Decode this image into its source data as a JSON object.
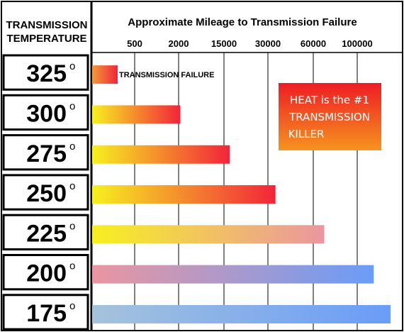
{
  "chart_data": {
    "type": "bar",
    "orientation": "horizontal",
    "title": "Approximate Mileage to Transmission Failure",
    "row_header": [
      "TRANSMISSION",
      "TEMPERATURE"
    ],
    "x_ticks": [
      "500",
      "2000",
      "15000",
      "30000",
      "60000",
      "100000"
    ],
    "x_scale": "ordinal-ticks",
    "grid": true,
    "categories": [
      "325",
      "300",
      "275",
      "250",
      "225",
      "200",
      "175"
    ],
    "degree_mark": "o",
    "values": [
      300,
      2500,
      17000,
      35000,
      70000,
      115000,
      150000
    ],
    "bar_colors": [
      [
        "#f29a3a",
        "#f2243a"
      ],
      [
        "#f7f020",
        "#f2243a"
      ],
      [
        "#f7f020",
        "#f2243a"
      ],
      [
        "#f7f020",
        "#f2243a"
      ],
      [
        "#f7f020",
        "#ea96a0"
      ],
      [
        "#ea96a0",
        "#6a9cf8"
      ],
      [
        "#a4c3dc",
        "#6a9cf8"
      ]
    ],
    "bar_annotation": {
      "row": 0,
      "text": "TRANSMISSION FAILURE"
    },
    "callout": {
      "lines": [
        "HEAT is the #1",
        "TRANSMISSION",
        "KILLER"
      ],
      "colors": [
        "#ee1c24",
        "#f7931e"
      ]
    }
  }
}
